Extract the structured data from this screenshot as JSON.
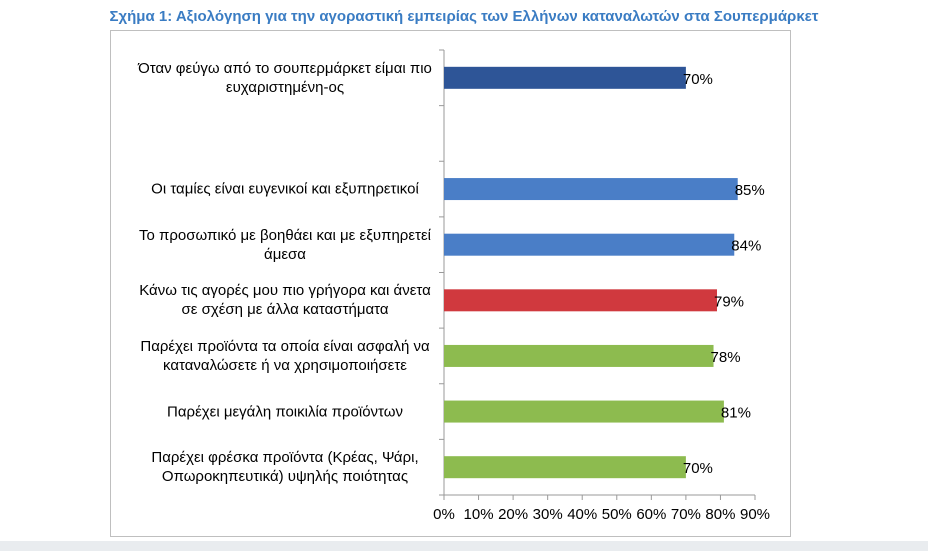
{
  "chart_data": {
    "type": "bar",
    "orientation": "horizontal",
    "title": "Σχήμα 1: Αξιολόγηση για την αγοραστική εμπειρίας των Ελλήνων καταναλωτών στα Σουπερμάρκετ",
    "categories": [
      "Όταν φεύγω από το σουπερμάρκετ είμαι πιο ευχαριστημένη-ος",
      null,
      "Οι ταμίες είναι ευγενικοί και εξυπηρετικοί",
      "Το προσωπικό με βοηθάει και με εξυπηρετεί άμεσα",
      "Κάνω τις αγορές μου πιο γρήγορα και άνετα σε σχέση με άλλα καταστήματα",
      "Παρέχει προϊόντα τα οποία είναι ασφαλή να καταναλώσετε ή να χρησιμοποιήσετε",
      "Παρέχει μεγάλη ποικιλία προϊόντων",
      "Παρέχει φρέσκα προϊόντα (Κρέας, Ψάρι, Οπωροκηπευτικά) υψηλής ποιότητας"
    ],
    "values": [
      70,
      null,
      85,
      84,
      79,
      78,
      81,
      70
    ],
    "value_labels": [
      "70%",
      null,
      "85%",
      "84%",
      "79%",
      "78%",
      "81%",
      "70%"
    ],
    "colors": [
      "#2e5597",
      null,
      "#4a7ec7",
      "#4a7ec7",
      "#d0393e",
      "#8dbb4f",
      "#8dbb4f",
      "#8dbb4f"
    ],
    "xlim": [
      0,
      90
    ],
    "xticks": [
      {
        "value": 0,
        "label": "0%"
      },
      {
        "value": 10,
        "label": "10%"
      },
      {
        "value": 20,
        "label": "20%"
      },
      {
        "value": 30,
        "label": "30%"
      },
      {
        "value": 40,
        "label": "40%"
      },
      {
        "value": 50,
        "label": "50%"
      },
      {
        "value": 60,
        "label": "60%"
      },
      {
        "value": 70,
        "label": "70%"
      },
      {
        "value": 80,
        "label": "80%"
      },
      {
        "value": 90,
        "label": "90%"
      }
    ]
  }
}
